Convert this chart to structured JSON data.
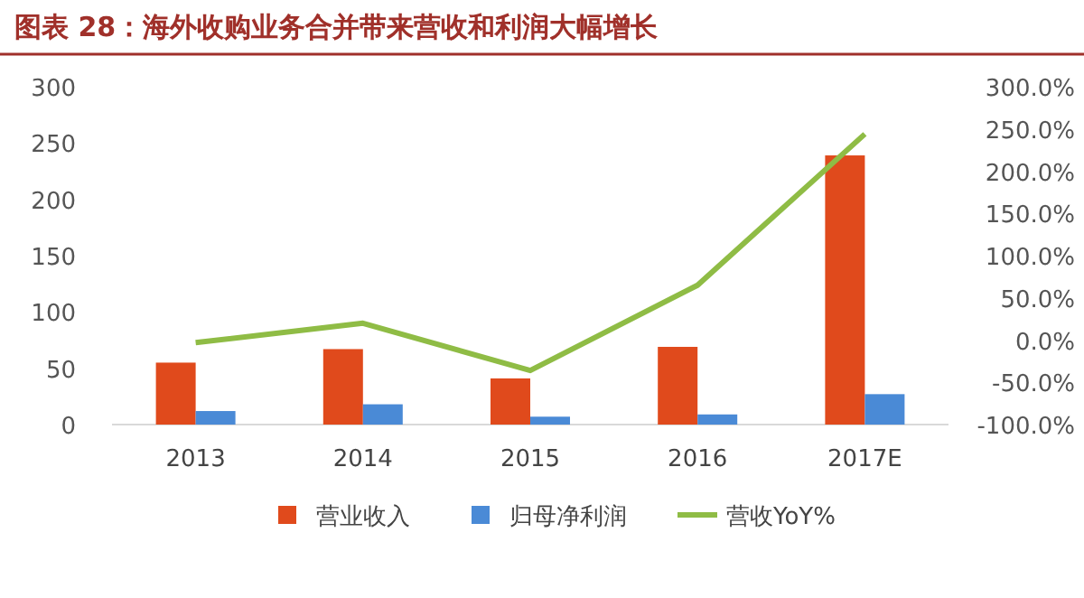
{
  "chart_data": {
    "type": "bar",
    "title": "图表 28：海外收购业务合并带来营收和利润大幅增长",
    "categories": [
      "2013",
      "2014",
      "2015",
      "2016",
      "2017E"
    ],
    "series": [
      {
        "name": "营业收入",
        "color": "#e04a1c",
        "values": [
          55,
          67,
          41,
          69,
          239
        ]
      },
      {
        "name": "归母净利润",
        "color": "#4a8ad6",
        "values": [
          12,
          18,
          7,
          9,
          27
        ]
      },
      {
        "name": "营收YoY%",
        "color": "#8fbc45",
        "type": "line",
        "axis": "y2",
        "values": [
          -3,
          20,
          -36,
          65,
          244
        ]
      }
    ],
    "ylim": [
      0,
      300
    ],
    "yticks": [
      0,
      50,
      100,
      150,
      200,
      250,
      300
    ],
    "y2lim": [
      -100,
      300
    ],
    "y2ticks": [
      {
        "value": -100,
        "label": "-100.0%"
      },
      {
        "value": -50,
        "label": "-50.0%"
      },
      {
        "value": 0,
        "label": "0.0%"
      },
      {
        "value": 50,
        "label": "50.0%"
      },
      {
        "value": 100,
        "label": "100.0%"
      },
      {
        "value": 150,
        "label": "150.0%"
      },
      {
        "value": 200,
        "label": "200.0%"
      },
      {
        "value": 250,
        "label": "250.0%"
      },
      {
        "value": 300,
        "label": "300.0%"
      }
    ],
    "legend": "bottom",
    "grid": false,
    "marker": "none"
  }
}
